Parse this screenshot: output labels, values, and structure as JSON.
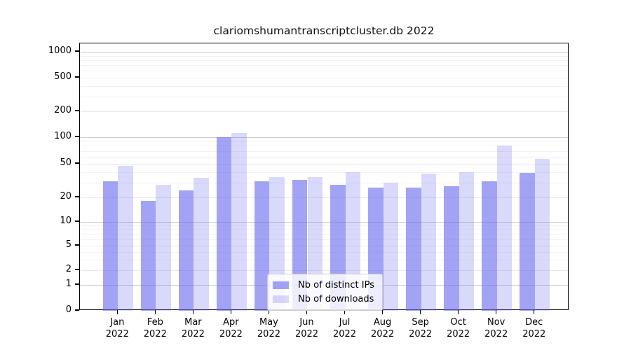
{
  "chart_data": {
    "type": "bar",
    "title": "clariomshumantranscriptcluster.db 2022",
    "categories": [
      "Jan",
      "Feb",
      "Mar",
      "Apr",
      "May",
      "Jun",
      "Jul",
      "Aug",
      "Sep",
      "Oct",
      "Nov",
      "Dec"
    ],
    "category_year": "2022",
    "series": [
      {
        "name": "Nb of distinct IPs",
        "color": "#6666ee",
        "alpha": 0.6,
        "values": [
          31,
          18,
          24,
          100,
          31,
          32,
          28,
          26,
          26,
          27,
          31,
          39
        ]
      },
      {
        "name": "Nb of downloads",
        "color": "#6666ee",
        "alpha": 0.25,
        "values": [
          47,
          28,
          34,
          112,
          35,
          35,
          40,
          30,
          38,
          40,
          81,
          57
        ]
      }
    ],
    "yticks": [
      1000,
      500,
      200,
      100,
      50,
      20,
      10,
      5,
      2,
      1,
      0
    ],
    "yaxis_scale": "log-with-zero-baseline",
    "ylim": [
      0,
      1250
    ],
    "grid": true,
    "legend_position": "bottom-center",
    "colors": {
      "spine": "#000000",
      "grid_major": "#cccccc",
      "grid_sub": "#e8e8e8",
      "grid_minor": "#f2f2f2",
      "text": "#000000"
    }
  }
}
